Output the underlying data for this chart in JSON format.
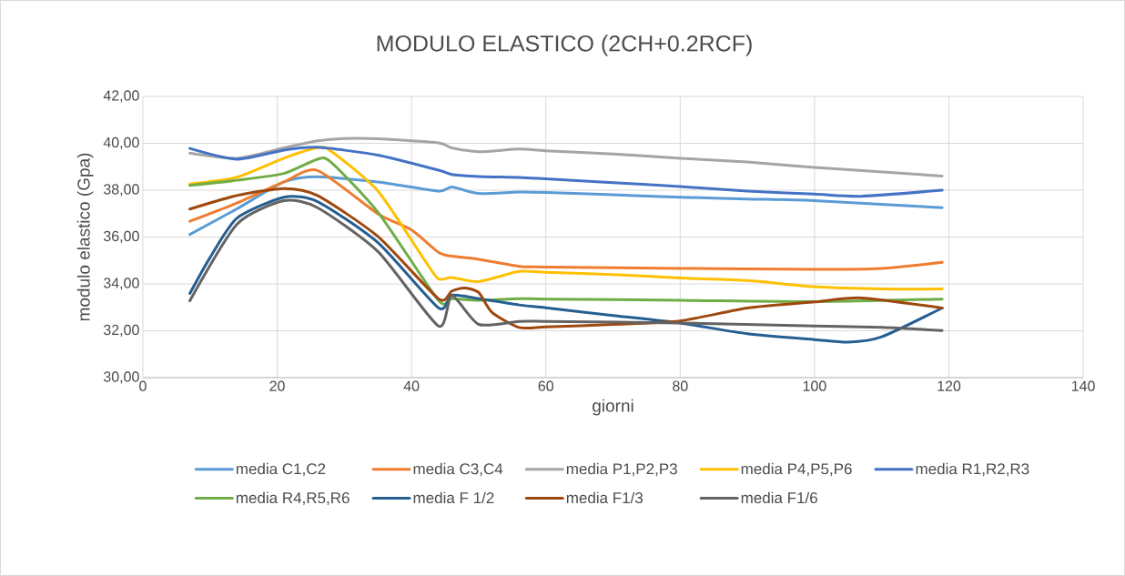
{
  "chart_data": {
    "type": "line",
    "title": "MODULO ELASTICO (2CH+0.2RCF)",
    "xlabel": "giorni",
    "ylabel": "modulo elastico (Gpa)",
    "xlim": [
      0,
      140
    ],
    "xticks": [
      0,
      20,
      40,
      60,
      80,
      100,
      120,
      140
    ],
    "ylim": [
      30,
      42
    ],
    "yticks": [
      {
        "value": 30,
        "label": "30,00"
      },
      {
        "value": 32,
        "label": "32,00"
      },
      {
        "value": 34,
        "label": "34,00"
      },
      {
        "value": 36,
        "label": "36,00"
      },
      {
        "value": 38,
        "label": "38,00"
      },
      {
        "value": 40,
        "label": "40,00"
      },
      {
        "value": 42,
        "label": "42,00"
      }
    ],
    "grid": true,
    "legend": "bottom",
    "marker": "none",
    "line_style": "solid",
    "series": [
      {
        "name": "media C1,C2",
        "color": "#5b9bd5",
        "x": [
          7,
          14,
          21,
          26,
          35,
          44,
          46,
          50,
          56,
          60,
          70,
          80,
          90,
          100,
          119
        ],
        "values": [
          36.11,
          37.2,
          38.35,
          38.57,
          38.35,
          37.96,
          38.13,
          37.86,
          37.92,
          37.9,
          37.8,
          37.7,
          37.62,
          37.55,
          37.25
        ]
      },
      {
        "name": "media C3,C4",
        "color": "#ed7d31",
        "x": [
          7,
          14,
          21,
          26,
          35,
          40,
          44,
          46,
          50,
          56,
          60,
          80,
          100,
          110,
          119
        ],
        "values": [
          36.67,
          37.45,
          38.35,
          38.84,
          36.99,
          36.3,
          35.35,
          35.18,
          35.05,
          34.75,
          34.72,
          34.66,
          34.62,
          34.66,
          34.92
        ]
      },
      {
        "name": "media P1,P2,P3",
        "color": "#a5a5a5",
        "x": [
          7,
          14,
          21,
          26,
          30,
          35,
          44,
          46,
          50,
          56,
          60,
          70,
          80,
          90,
          100,
          119
        ],
        "values": [
          39.58,
          39.36,
          39.8,
          40.1,
          40.2,
          40.19,
          40.02,
          39.8,
          39.64,
          39.75,
          39.68,
          39.54,
          39.36,
          39.2,
          38.97,
          38.6
        ]
      },
      {
        "name": "media P4,P5,P6",
        "color": "#ffc000",
        "x": [
          7,
          14,
          21,
          26,
          28,
          35,
          42,
          44,
          46,
          50,
          56,
          60,
          70,
          80,
          90,
          100,
          110,
          119
        ],
        "values": [
          38.26,
          38.55,
          39.36,
          39.81,
          39.67,
          37.96,
          34.99,
          34.21,
          34.27,
          34.1,
          34.53,
          34.49,
          34.4,
          34.25,
          34.14,
          33.88,
          33.78,
          33.78
        ]
      },
      {
        "name": "media R1,R2,R3",
        "color": "#4472c4",
        "x": [
          7,
          14,
          21,
          26,
          35,
          44,
          46,
          50,
          56,
          60,
          70,
          80,
          90,
          100,
          107,
          119
        ],
        "values": [
          39.78,
          39.32,
          39.71,
          39.83,
          39.49,
          38.85,
          38.67,
          38.58,
          38.54,
          38.48,
          38.32,
          38.15,
          37.96,
          37.83,
          37.74,
          38.0
        ]
      },
      {
        "name": "media R4,R5,R6",
        "color": "#70ad47",
        "x": [
          7,
          14,
          21,
          26,
          28,
          35,
          44,
          46,
          50,
          56,
          60,
          80,
          100,
          119
        ],
        "values": [
          38.2,
          38.42,
          38.71,
          39.32,
          39.2,
          37.06,
          33.3,
          33.37,
          33.3,
          33.37,
          33.35,
          33.3,
          33.24,
          33.35
        ]
      },
      {
        "name": "media F 1/2",
        "color": "#255e91",
        "x": [
          7,
          10,
          14,
          21,
          26,
          35,
          44,
          46,
          50,
          56,
          60,
          70,
          80,
          90,
          100,
          105,
          110,
          119
        ],
        "values": [
          33.59,
          35.12,
          36.8,
          37.7,
          37.51,
          35.76,
          32.98,
          33.52,
          33.37,
          33.1,
          32.98,
          32.65,
          32.33,
          31.87,
          31.62,
          31.51,
          31.74,
          32.97
        ]
      },
      {
        "name": "media F1/3",
        "color": "#9e480e",
        "x": [
          7,
          14,
          21,
          26,
          35,
          44,
          46,
          48,
          50,
          52,
          56,
          60,
          70,
          80,
          90,
          100,
          107,
          119
        ],
        "values": [
          37.19,
          37.77,
          38.07,
          37.77,
          36.02,
          33.37,
          33.69,
          33.82,
          33.63,
          32.78,
          32.14,
          32.16,
          32.27,
          32.42,
          32.97,
          33.23,
          33.4,
          32.97
        ]
      },
      {
        "name": "media F1/6",
        "color": "#636363",
        "x": [
          7,
          14,
          21,
          26,
          35,
          44,
          46,
          50,
          56,
          60,
          80,
          100,
          110,
          119
        ],
        "values": [
          33.28,
          36.54,
          37.55,
          37.25,
          35.38,
          32.2,
          33.5,
          32.27,
          32.4,
          32.4,
          32.33,
          32.2,
          32.14,
          32.01
        ]
      }
    ]
  }
}
